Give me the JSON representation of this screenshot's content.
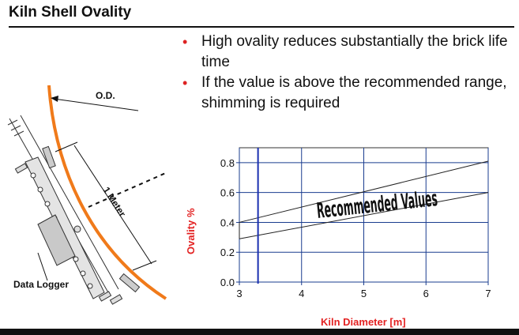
{
  "slide": {
    "title": "Kiln Shell Ovality",
    "bullets": [
      "High ovality reduces substantially the brick life time",
      "If the value is above the recommended range, shimming is required"
    ]
  },
  "diagram": {
    "od_label": "O.D.",
    "meter_label": "1 Meter",
    "logger_label": "Data Logger",
    "colors": {
      "shell": "#f07a1a",
      "bullet": "#dd2222"
    }
  },
  "chart_data": {
    "type": "line",
    "title": "",
    "xlabel": "Kiln Diameter [m]",
    "ylabel": "Ovality %",
    "xlim": [
      3,
      7
    ],
    "ylim": [
      0,
      0.9
    ],
    "x_ticks": [
      "3",
      "4",
      "5",
      "6",
      "7"
    ],
    "y_ticks": [
      "0.0",
      "0.2",
      "0.4",
      "0.6",
      "0.8"
    ],
    "grid": true,
    "annotation": "Recommended Values",
    "series": [
      {
        "x": [
          3,
          7
        ],
        "y": [
          0.4,
          0.81
        ]
      },
      {
        "x": [
          3,
          7
        ],
        "y": [
          0.29,
          0.6
        ]
      }
    ],
    "vertical_marker_x": 3.3,
    "colors": {
      "axis_title": "#e32222",
      "grid": "#1a3d8f",
      "marker": "#1a2fb0"
    }
  }
}
